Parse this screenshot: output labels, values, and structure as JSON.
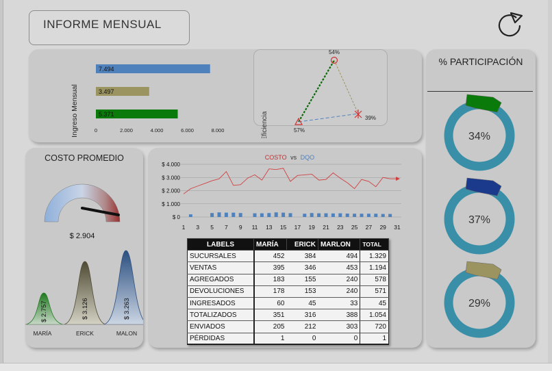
{
  "header": {
    "title": "INFORME MENSUAL",
    "refresh_icon": "refresh-icon"
  },
  "income": {
    "axis_label": "Ingreso Mensual",
    "bars": [
      {
        "label": "7.494",
        "value": 7494,
        "color": "#4f81bd"
      },
      {
        "label": "3.497",
        "value": 3497,
        "color": "#9b9460"
      },
      {
        "label": "5.371",
        "value": 5371,
        "color": "#0a7a0a"
      }
    ],
    "ticks": [
      "0",
      "2.000",
      "4.000",
      "6.000",
      "8.000"
    ],
    "max": 8000
  },
  "efficiency": {
    "axis_label": "% Eficiencia",
    "top_label": "54%",
    "right_label": "39%",
    "left_label": "57%"
  },
  "participation": {
    "title": "% PARTICIPACIÓN",
    "rings": [
      {
        "label": "34%",
        "color": "#0a7a0a"
      },
      {
        "label": "37%",
        "color": "#1c3a8c"
      },
      {
        "label": "29%",
        "color": "#9b9460"
      }
    ]
  },
  "cost": {
    "title": "COSTO PROMEDIO",
    "value": "$ 2.904",
    "people": [
      {
        "name": "MARÍA",
        "value": "$ 2.757",
        "color": "#2a8a2a"
      },
      {
        "name": "ERICK",
        "value": "$ 3.126",
        "color": "#6b6548"
      },
      {
        "name": "MALON",
        "value": "$ 3.263",
        "color": "#3a5f94"
      }
    ]
  },
  "chart_data": {
    "type": "line",
    "title_part1": "COSTO",
    "title_vs": "vs",
    "title_part2": "DQO",
    "x": [
      1,
      2,
      3,
      4,
      5,
      6,
      7,
      8,
      9,
      10,
      11,
      12,
      13,
      14,
      15,
      16,
      17,
      18,
      19,
      20,
      21,
      22,
      23,
      24,
      25,
      26,
      27,
      28,
      29,
      30,
      31
    ],
    "xticks": [
      "1",
      "3",
      "5",
      "7",
      "9",
      "11",
      "13",
      "15",
      "17",
      "19",
      "21",
      "23",
      "25",
      "27",
      "29",
      "31"
    ],
    "yticks": [
      "$ 4.000",
      "$ 3.000",
      "$ 2.000",
      "$ 1.000",
      "$ 0"
    ],
    "ylim": [
      0,
      4000
    ],
    "series": [
      {
        "name": "COSTO",
        "color": "#d04040",
        "values": [
          1750,
          2150,
          2350,
          2550,
          2750,
          2900,
          3450,
          2400,
          2450,
          2950,
          3200,
          2800,
          3650,
          3600,
          3700,
          2700,
          3150,
          3200,
          3250,
          2800,
          2850,
          3350,
          2950,
          2600,
          2150,
          2850,
          2700,
          2300,
          3000,
          2900,
          2900
        ]
      },
      {
        "name": "DQO",
        "color": "#4f81bd",
        "values": [
          0,
          200,
          0,
          0,
          300,
          350,
          330,
          330,
          300,
          0,
          280,
          280,
          300,
          350,
          330,
          290,
          0,
          250,
          300,
          280,
          280,
          270,
          280,
          260,
          250,
          250,
          250,
          250,
          230,
          230,
          0
        ]
      }
    ]
  },
  "table": {
    "headers": [
      "LABELS",
      "MARÍA",
      "ERICK",
      "MARLON",
      "TOTAL"
    ],
    "rows": [
      [
        "SUCURSALES",
        "452",
        "384",
        "494",
        "1.329"
      ],
      [
        "VENTAS",
        "395",
        "346",
        "453",
        "1.194"
      ],
      [
        "AGREGADOS",
        "183",
        "155",
        "240",
        "578"
      ],
      [
        "DEVOLUCIONES",
        "178",
        "153",
        "240",
        "571"
      ],
      [
        "INGRESADOS",
        "60",
        "45",
        "33",
        "45"
      ],
      [
        "TOTALIZADOS",
        "351",
        "316",
        "388",
        "1.054"
      ],
      [
        "ENVIADOS",
        "205",
        "212",
        "303",
        "720"
      ],
      [
        "PÉRDIDAS",
        "1",
        "0",
        "0",
        "1"
      ]
    ]
  }
}
